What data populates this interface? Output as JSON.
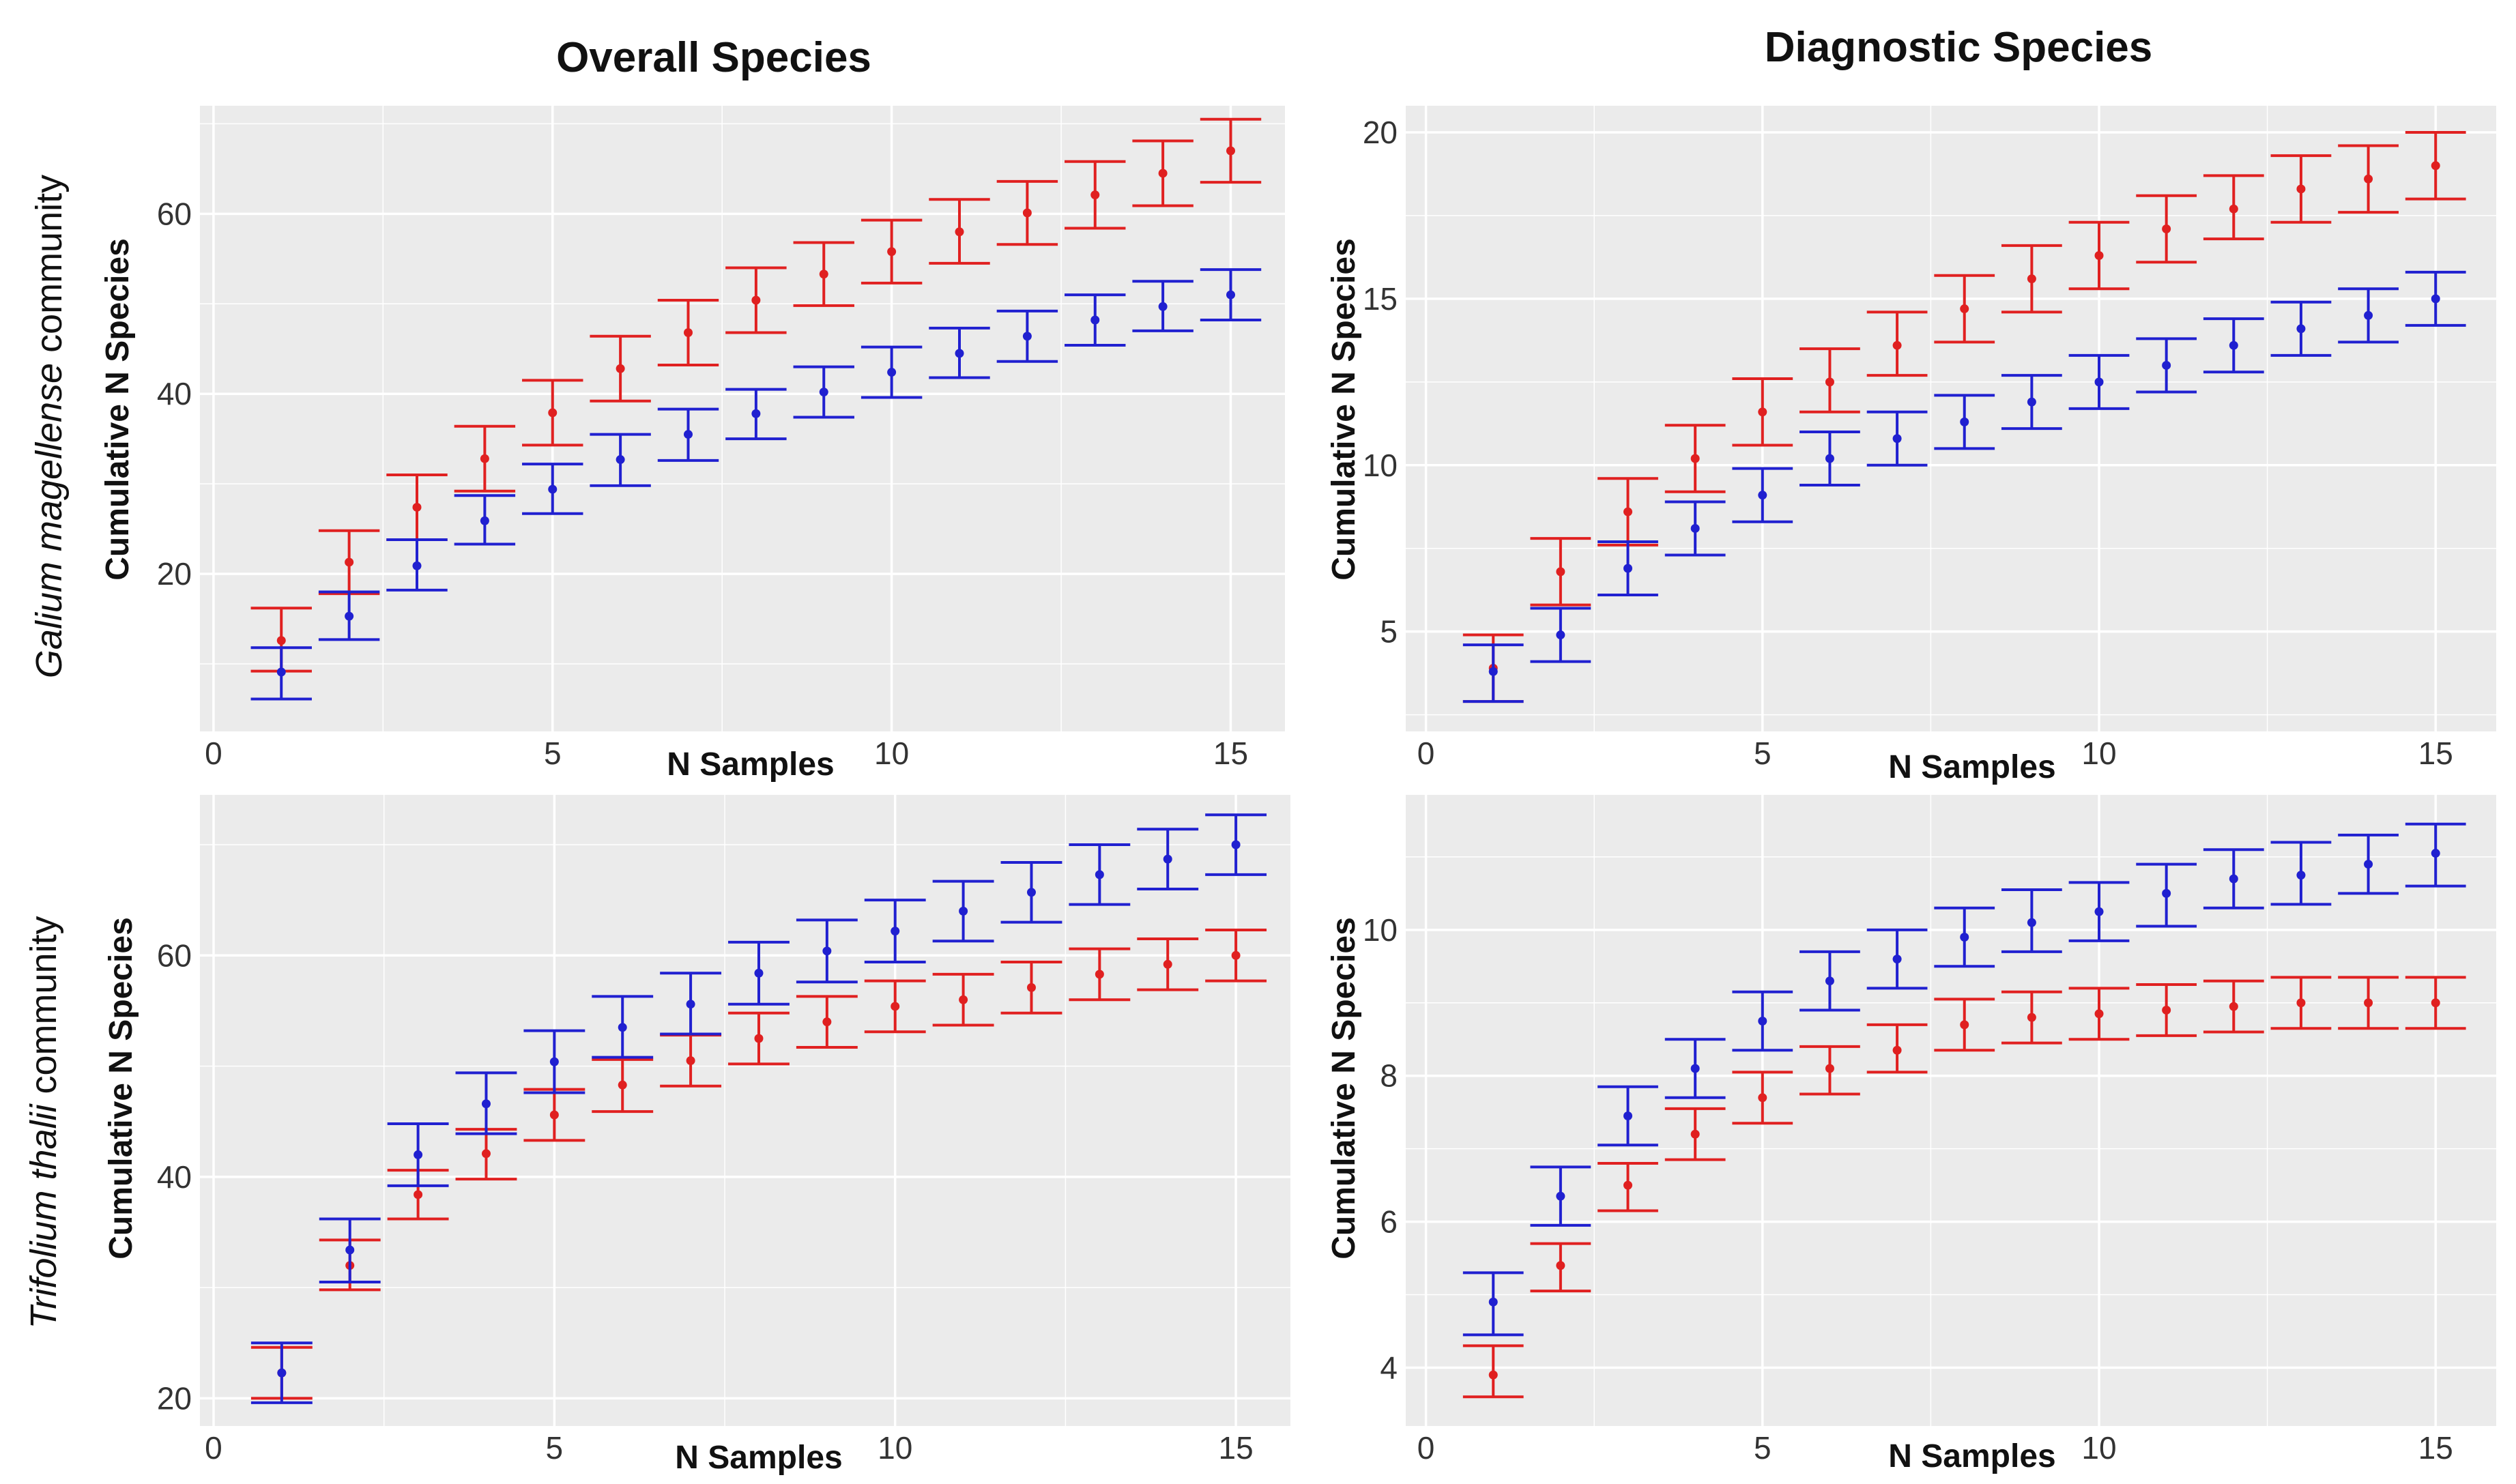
{
  "col_titles": [
    "Overall Species",
    "Diagnostic Species"
  ],
  "row_titles": [
    {
      "italic": "Galium magellense",
      "normal": " community"
    },
    {
      "italic": "Trifolium thalii",
      "normal": " community"
    }
  ],
  "colors": {
    "red": "#e02020",
    "blue": "#2020d0",
    "panel_bg": "#ebebeb",
    "grid": "#ffffff"
  },
  "chart_data": [
    {
      "type": "scatter",
      "subtype": "error-bar",
      "title": "Overall Species",
      "row_label": "Galium magellense community",
      "xlabel": "N Samples",
      "ylabel": "Cumulative N Species",
      "xlim": [
        -0.2,
        15.8
      ],
      "ylim": [
        2.5,
        72
      ],
      "xticks": [
        0,
        5,
        10,
        15
      ],
      "yticks": [
        20,
        40,
        60
      ],
      "grid": true,
      "series": [
        {
          "name": "red",
          "color": "#e02020",
          "x": [
            1,
            2,
            3,
            4,
            5,
            6,
            7,
            8,
            9,
            10,
            11,
            12,
            13,
            14,
            15
          ],
          "y": [
            12.6,
            21.3,
            27.4,
            32.8,
            37.9,
            42.8,
            46.8,
            50.4,
            53.3,
            55.8,
            58.0,
            60.1,
            62.1,
            64.5,
            67.0
          ],
          "lower": [
            9.2,
            17.8,
            23.8,
            29.2,
            34.3,
            39.2,
            43.2,
            46.8,
            49.8,
            52.3,
            54.5,
            56.6,
            58.4,
            60.9,
            63.5
          ],
          "upper": [
            16.2,
            24.8,
            31.0,
            36.4,
            41.5,
            46.4,
            50.4,
            54.0,
            56.8,
            59.3,
            61.6,
            63.6,
            65.8,
            68.1,
            70.5
          ]
        },
        {
          "name": "blue",
          "color": "#2020d0",
          "x": [
            1,
            2,
            3,
            4,
            5,
            6,
            7,
            8,
            9,
            10,
            11,
            12,
            13,
            14,
            15
          ],
          "y": [
            9.1,
            15.3,
            20.9,
            25.9,
            29.4,
            32.7,
            35.5,
            37.8,
            40.2,
            42.4,
            44.5,
            46.4,
            48.2,
            49.7,
            51.0
          ],
          "lower": [
            6.1,
            12.7,
            18.2,
            23.3,
            26.7,
            29.8,
            32.6,
            35.0,
            37.4,
            39.6,
            41.8,
            43.6,
            45.4,
            47.0,
            48.2
          ],
          "upper": [
            11.8,
            18.0,
            23.8,
            28.7,
            32.2,
            35.5,
            38.3,
            40.5,
            43.0,
            45.2,
            47.3,
            49.2,
            51.0,
            52.5,
            53.8
          ]
        }
      ]
    },
    {
      "type": "scatter",
      "subtype": "error-bar",
      "title": "Diagnostic Species",
      "row_label": "Galium magellense community",
      "xlabel": "N Samples",
      "ylabel": "Cumulative N Species",
      "xlim": [
        -0.3,
        15.9
      ],
      "ylim": [
        2.0,
        20.8
      ],
      "xticks": [
        0,
        5,
        10,
        15
      ],
      "yticks": [
        5,
        10,
        15,
        20
      ],
      "grid": true,
      "series": [
        {
          "name": "red",
          "color": "#e02020",
          "x": [
            1,
            2,
            3,
            4,
            5,
            6,
            7,
            8,
            9,
            10,
            11,
            12,
            13,
            14,
            15
          ],
          "y": [
            3.9,
            6.8,
            8.6,
            10.2,
            11.6,
            12.5,
            13.6,
            14.7,
            15.6,
            16.3,
            17.1,
            17.7,
            18.3,
            18.6,
            19.0
          ],
          "lower": [
            2.9,
            5.8,
            7.6,
            9.2,
            10.6,
            11.6,
            12.7,
            13.7,
            14.6,
            15.3,
            16.1,
            16.8,
            17.3,
            17.6,
            18.0
          ],
          "upper": [
            4.9,
            7.8,
            9.6,
            11.2,
            12.6,
            13.5,
            14.6,
            15.7,
            16.6,
            17.3,
            18.1,
            18.7,
            19.3,
            19.6,
            20.0
          ]
        },
        {
          "name": "blue",
          "color": "#2020d0",
          "x": [
            1,
            2,
            3,
            4,
            5,
            6,
            7,
            8,
            9,
            10,
            11,
            12,
            13,
            14,
            15
          ],
          "y": [
            3.8,
            4.9,
            6.9,
            8.1,
            9.1,
            10.2,
            10.8,
            11.3,
            11.9,
            12.5,
            13.0,
            13.6,
            14.1,
            14.5,
            15.0
          ],
          "lower": [
            2.9,
            4.1,
            6.1,
            7.3,
            8.3,
            9.4,
            10.0,
            10.5,
            11.1,
            11.7,
            12.2,
            12.8,
            13.3,
            13.7,
            14.2
          ],
          "upper": [
            4.6,
            5.7,
            7.7,
            8.9,
            9.9,
            11.0,
            11.6,
            12.1,
            12.7,
            13.3,
            13.8,
            14.4,
            14.9,
            15.3,
            15.8
          ]
        }
      ]
    },
    {
      "type": "scatter",
      "subtype": "error-bar",
      "title": "Overall Species",
      "row_label": "Trifolium thalii community",
      "xlabel": "N Samples",
      "ylabel": "Cumulative N Species",
      "xlim": [
        -0.2,
        15.8
      ],
      "ylim": [
        17.5,
        74.5
      ],
      "xticks": [
        0,
        5,
        10,
        15
      ],
      "yticks": [
        20,
        40,
        60
      ],
      "grid": true,
      "series": [
        {
          "name": "red",
          "color": "#e02020",
          "x": [
            1,
            2,
            3,
            4,
            5,
            6,
            7,
            8,
            9,
            10,
            11,
            12,
            13,
            14,
            15
          ],
          "y": [
            22.3,
            32.0,
            38.4,
            42.1,
            45.6,
            48.3,
            50.5,
            52.5,
            54.0,
            55.4,
            56.0,
            57.1,
            58.3,
            59.2,
            60.0
          ],
          "lower": [
            20.0,
            29.8,
            36.2,
            39.8,
            43.3,
            45.9,
            48.2,
            50.2,
            51.7,
            53.1,
            53.7,
            54.8,
            56.0,
            56.9,
            57.7
          ],
          "upper": [
            24.6,
            34.3,
            40.6,
            44.3,
            47.9,
            50.6,
            52.8,
            54.8,
            56.3,
            57.7,
            58.3,
            59.4,
            60.6,
            61.5,
            62.3
          ]
        },
        {
          "name": "blue",
          "color": "#2020d0",
          "x": [
            1,
            2,
            3,
            4,
            5,
            6,
            7,
            8,
            9,
            10,
            11,
            12,
            13,
            14,
            15
          ],
          "y": [
            22.3,
            33.4,
            42.0,
            46.6,
            50.4,
            53.5,
            55.6,
            58.4,
            60.4,
            62.2,
            64.0,
            65.7,
            67.3,
            68.7,
            70.0
          ],
          "lower": [
            19.6,
            30.5,
            39.2,
            43.9,
            47.6,
            50.8,
            52.9,
            55.6,
            57.6,
            59.4,
            61.3,
            63.0,
            64.6,
            66.0,
            67.3
          ],
          "upper": [
            25.0,
            36.2,
            44.8,
            49.4,
            53.2,
            56.3,
            58.4,
            61.2,
            63.2,
            65.0,
            66.7,
            68.4,
            70.0,
            71.4,
            72.7
          ]
        }
      ]
    },
    {
      "type": "scatter",
      "subtype": "error-bar",
      "title": "Diagnostic Species",
      "row_label": "Trifolium thalii community",
      "xlabel": "N Samples",
      "ylabel": "Cumulative N Species",
      "xlim": [
        -0.3,
        15.9
      ],
      "ylim": [
        3.2,
        11.85
      ],
      "xticks": [
        0,
        5,
        10,
        15
      ],
      "yticks": [
        4,
        6,
        8,
        10
      ],
      "grid": true,
      "series": [
        {
          "name": "red",
          "color": "#e02020",
          "x": [
            1,
            2,
            3,
            4,
            5,
            6,
            7,
            8,
            9,
            10,
            11,
            12,
            13,
            14,
            15
          ],
          "y": [
            3.9,
            5.4,
            6.5,
            7.2,
            7.7,
            8.1,
            8.35,
            8.7,
            8.8,
            8.85,
            8.9,
            8.95,
            9.0,
            9.0,
            9.0
          ],
          "lower": [
            3.6,
            5.05,
            6.15,
            6.85,
            7.35,
            7.75,
            8.05,
            8.35,
            8.45,
            8.5,
            8.55,
            8.6,
            8.65,
            8.65,
            8.65
          ],
          "upper": [
            4.3,
            5.7,
            6.8,
            7.55,
            8.05,
            8.4,
            8.7,
            9.05,
            9.15,
            9.2,
            9.25,
            9.3,
            9.35,
            9.35,
            9.35
          ]
        },
        {
          "name": "blue",
          "color": "#2020d0",
          "x": [
            1,
            2,
            3,
            4,
            5,
            6,
            7,
            8,
            9,
            10,
            11,
            12,
            13,
            14,
            15
          ],
          "y": [
            4.9,
            6.35,
            7.45,
            8.1,
            8.75,
            9.3,
            9.6,
            9.9,
            10.1,
            10.25,
            10.5,
            10.7,
            10.75,
            10.9,
            11.05
          ],
          "lower": [
            4.45,
            5.95,
            7.05,
            7.7,
            8.35,
            8.9,
            9.2,
            9.5,
            9.7,
            9.85,
            10.05,
            10.3,
            10.35,
            10.5,
            10.6
          ],
          "upper": [
            5.3,
            6.75,
            7.85,
            8.5,
            9.15,
            9.7,
            10.0,
            10.3,
            10.55,
            10.65,
            10.9,
            11.1,
            11.2,
            11.3,
            11.45
          ]
        }
      ]
    }
  ]
}
